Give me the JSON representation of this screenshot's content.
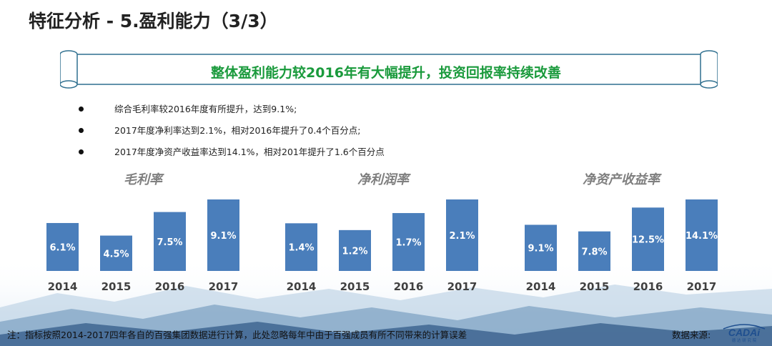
{
  "page": {
    "title": "特征分析 - 5.盈利能力（3/3）",
    "banner": "整体盈利能力较2016年有大幅提升，投资回报率持续改善",
    "bullets": [
      "综合毛利率较2016年度有所提升，达到9.1%;",
      "2017年度净利率达到2.1%，相对2016年提升了0.4个百分点;",
      "2017年度净资产收益率达到14.1%，相对201年提升了1.6个百分点"
    ],
    "footer_note": "注：指标按照2014-2017四年各自的百强集团数据进行计算，此处忽略每年中由于百强成员有所不同带来的计算误差",
    "source_label": "数据来源:",
    "logo": {
      "text": "CADAi",
      "sub": "德 达 研 究 院"
    }
  },
  "colors": {
    "bar": "#4a7ebb",
    "banner_text": "#1a9a3c",
    "chart_title": "#7f7f7f",
    "axis_label": "#404040"
  },
  "chart_data": [
    {
      "type": "bar",
      "title": "毛利率",
      "categories": [
        "2014",
        "2015",
        "2016",
        "2017"
      ],
      "values": [
        6.1,
        4.5,
        7.5,
        9.1
      ],
      "labels": [
        "6.1%",
        "4.5%",
        "7.5%",
        "9.1%"
      ],
      "xlabel": "",
      "ylabel": ""
    },
    {
      "type": "bar",
      "title": "净利润率",
      "categories": [
        "2014",
        "2015",
        "2016",
        "2017"
      ],
      "values": [
        1.4,
        1.2,
        1.7,
        2.1
      ],
      "labels": [
        "1.4%",
        "1.2%",
        "1.7%",
        "2.1%"
      ],
      "xlabel": "",
      "ylabel": ""
    },
    {
      "type": "bar",
      "title": "净资产收益率",
      "categories": [
        "2014",
        "2015",
        "2016",
        "2017"
      ],
      "values": [
        9.1,
        7.8,
        12.5,
        14.1
      ],
      "labels": [
        "9.1%",
        "7.8%",
        "12.5%",
        "14.1%"
      ],
      "xlabel": "",
      "ylabel": ""
    }
  ]
}
